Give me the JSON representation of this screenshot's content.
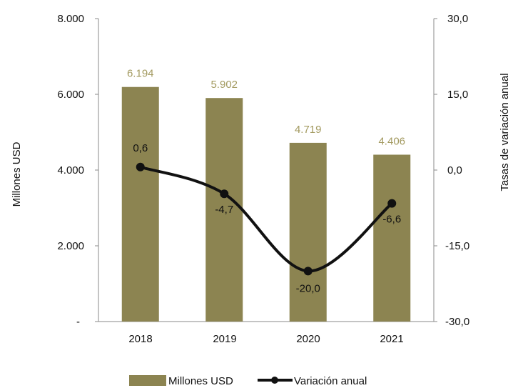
{
  "colors": {
    "bar": "#8c8451",
    "line": "#111111",
    "axis": "#8a8a8a",
    "bar_label": "#a39a60"
  },
  "chart_data": {
    "type": "bar",
    "categories": [
      "2018",
      "2019",
      "2020",
      "2021"
    ],
    "series": [
      {
        "name": "Millones USD",
        "type": "bar",
        "axis": "left",
        "values": [
          6194,
          5902,
          4719,
          4406
        ],
        "labels": [
          "6.194",
          "5.902",
          "4.719",
          "4.406"
        ]
      },
      {
        "name": "Variación anual",
        "type": "line",
        "axis": "right",
        "values": [
          0.6,
          -4.7,
          -20.0,
          -6.6
        ],
        "labels": [
          "0,6",
          "-4,7",
          "-20,0",
          "-6,6"
        ]
      }
    ],
    "ylabel": "Millones  USD",
    "y2label": "Tasas de variación anual",
    "ylim": [
      0,
      8000
    ],
    "y2lim": [
      -30,
      30
    ],
    "yticks": [
      "-",
      "2.000",
      "4.000",
      "6.000",
      "8.000"
    ],
    "y2ticks": [
      "-30,0",
      "-15,0",
      "0,0",
      "15,0",
      "30,0"
    ],
    "legend": {
      "position": "bottom",
      "entries": [
        "Millones USD",
        "Variación anual"
      ]
    },
    "grid": false
  }
}
